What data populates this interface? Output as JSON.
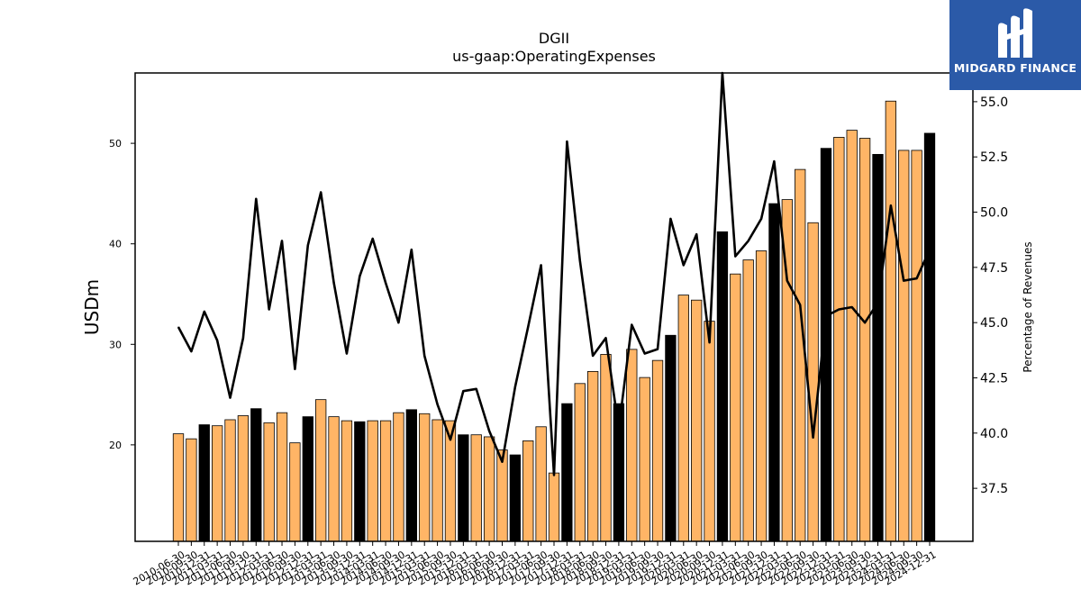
{
  "logo": {
    "text": "MIDGARD FINANCE",
    "icon": "midgard-finance-logo-icon",
    "background": "#2b5aa8"
  },
  "chart_data": {
    "type": "bar",
    "title": "DGII",
    "subtitle": "us-gaap:OperatingExpenses",
    "ylabel": "USDm",
    "y2label": "Percentage of Revenues",
    "ylim": [
      10.4,
      57
    ],
    "y2lim": [
      35.1,
      56.3
    ],
    "yticks": [
      20,
      30,
      40,
      50
    ],
    "y2ticks": [
      37.5,
      40.0,
      42.5,
      45.0,
      47.5,
      50.0,
      52.5,
      55.0
    ],
    "colors": {
      "quarter_bar": "#ffb566",
      "annual_bar": "#000000",
      "line": "#000000"
    },
    "categories": [
      "2010-06-30",
      "2010-09-30",
      "2010-12-31",
      "2011-03-31",
      "2011-06-30",
      "2011-09-30",
      "2011-12-31",
      "2012-03-31",
      "2012-06-30",
      "2012-09-30",
      "2012-12-31",
      "2013-03-31",
      "2013-06-30",
      "2013-09-30",
      "2013-12-31",
      "2014-03-31",
      "2014-06-30",
      "2014-09-30",
      "2014-12-31",
      "2015-03-31",
      "2015-06-30",
      "2015-09-30",
      "2015-12-31",
      "2016-03-31",
      "2016-06-30",
      "2016-09-30",
      "2016-12-31",
      "2017-03-31",
      "2017-06-30",
      "2017-09-30",
      "2017-12-31",
      "2018-03-31",
      "2018-06-30",
      "2018-09-30",
      "2018-12-31",
      "2019-03-31",
      "2019-06-30",
      "2019-09-30",
      "2019-12-31",
      "2020-03-31",
      "2020-06-30",
      "2020-09-30",
      "2020-12-31",
      "2021-03-31",
      "2021-06-30",
      "2021-09-30",
      "2021-12-31",
      "2022-03-31",
      "2022-06-30",
      "2022-09-30",
      "2022-12-31",
      "2023-03-31",
      "2023-06-30",
      "2023-09-30",
      "2023-12-31",
      "2024-03-31",
      "2024-06-30",
      "2024-09-30",
      "2024-12-31"
    ],
    "series": [
      {
        "type": "bar",
        "values": [
          21.1,
          20.6,
          22.0,
          21.9,
          22.5,
          22.9,
          23.6,
          22.2,
          23.2,
          20.2,
          22.8,
          24.5,
          22.8,
          22.4,
          22.3,
          22.4,
          22.4,
          23.2,
          23.5,
          23.1,
          22.5,
          22.4,
          21.0,
          21.0,
          20.8,
          19.5,
          19.0,
          20.4,
          21.8,
          17.2,
          24.1,
          26.1,
          27.3,
          29.0,
          24.1,
          29.5,
          26.7,
          28.4,
          30.9,
          34.9,
          34.4,
          32.3,
          41.2,
          37.0,
          38.4,
          39.3,
          44.0,
          44.4,
          47.4,
          42.1,
          49.5,
          50.6,
          51.3,
          50.5,
          48.9,
          54.2,
          49.3,
          49.3,
          51.0
        ],
        "annual": [
          false,
          false,
          true,
          false,
          false,
          false,
          true,
          false,
          false,
          false,
          true,
          false,
          false,
          false,
          true,
          false,
          false,
          false,
          true,
          false,
          false,
          false,
          true,
          false,
          false,
          false,
          true,
          false,
          false,
          false,
          true,
          false,
          false,
          false,
          true,
          false,
          false,
          false,
          true,
          false,
          false,
          false,
          true,
          false,
          false,
          false,
          true,
          false,
          false,
          false,
          true,
          false,
          false,
          false,
          true,
          false,
          false,
          false,
          true
        ]
      },
      {
        "type": "line",
        "axis": "right",
        "values": [
          44.8,
          43.7,
          45.5,
          44.2,
          41.6,
          44.3,
          50.6,
          45.6,
          48.7,
          42.9,
          48.5,
          50.9,
          46.8,
          43.6,
          47.1,
          48.8,
          46.8,
          45.0,
          48.3,
          43.5,
          41.3,
          39.7,
          41.9,
          42.0,
          40.1,
          38.7,
          42.1,
          44.8,
          47.6,
          38.1,
          53.2,
          47.8,
          43.5,
          44.3,
          40.2,
          44.9,
          43.6,
          43.8,
          49.7,
          47.6,
          49.0,
          44.1,
          56.3,
          48.0,
          48.7,
          49.7,
          52.3,
          46.9,
          45.8,
          39.8,
          45.3,
          45.6,
          45.7,
          45.0,
          45.9,
          50.3,
          46.9,
          47.0,
          48.3
        ]
      }
    ]
  }
}
